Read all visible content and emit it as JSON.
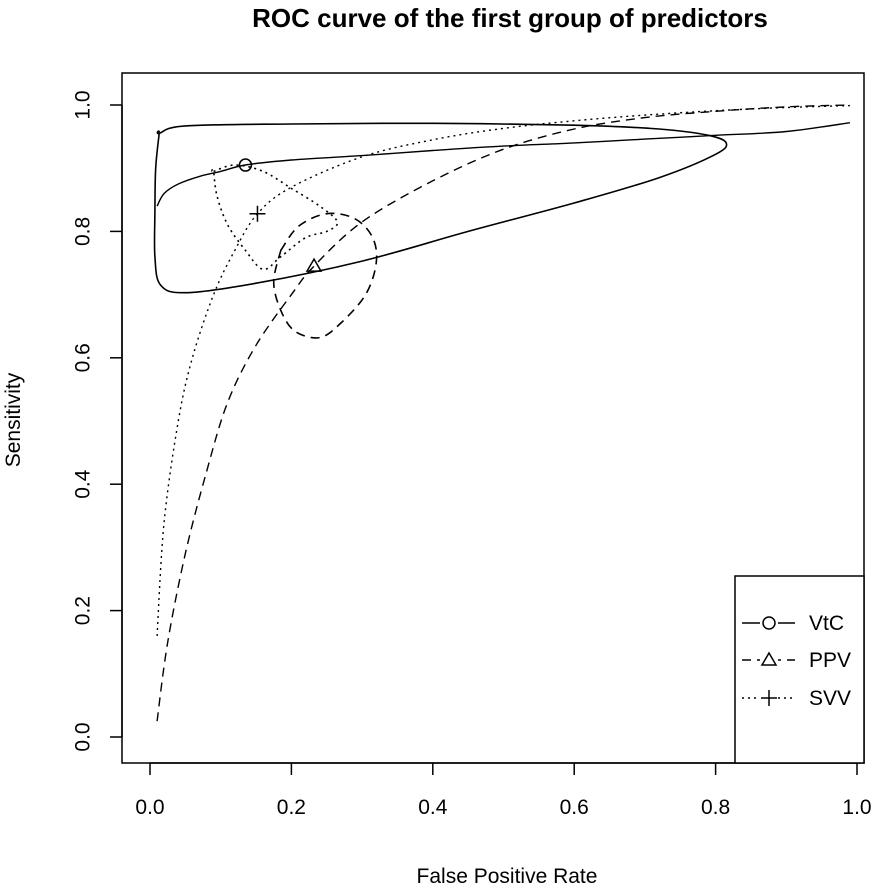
{
  "chart_data": {
    "type": "line",
    "title": "ROC curve of the first group of predictors",
    "xlabel": "False Positive Rate",
    "ylabel": "Sensitivity",
    "xlim": [
      0,
      1
    ],
    "ylim": [
      0,
      1
    ],
    "x_ticks": [
      "0.0",
      "0.2",
      "0.4",
      "0.6",
      "0.8",
      "1.0"
    ],
    "y_ticks": [
      "0.0",
      "0.2",
      "0.4",
      "0.6",
      "0.8",
      "1.0"
    ],
    "grid": false,
    "legend_position": "bottom-right",
    "series": [
      {
        "name": "VtC",
        "line_style": "solid",
        "marker": "circle",
        "color": "#000000",
        "point": [
          0.135,
          0.905
        ],
        "points": [
          [
            0.01,
            0.84
          ],
          [
            0.02,
            0.86
          ],
          [
            0.04,
            0.875
          ],
          [
            0.07,
            0.887
          ],
          [
            0.1,
            0.895
          ],
          [
            0.135,
            0.905
          ],
          [
            0.2,
            0.913
          ],
          [
            0.3,
            0.92
          ],
          [
            0.4,
            0.928
          ],
          [
            0.5,
            0.935
          ],
          [
            0.6,
            0.94
          ],
          [
            0.7,
            0.946
          ],
          [
            0.8,
            0.952
          ],
          [
            0.9,
            0.958
          ],
          [
            0.99,
            0.972
          ]
        ],
        "confidence_region": [
          [
            0.013,
            0.955
          ],
          [
            0.05,
            0.967
          ],
          [
            0.2,
            0.97
          ],
          [
            0.4,
            0.971
          ],
          [
            0.6,
            0.968
          ],
          [
            0.72,
            0.962
          ],
          [
            0.79,
            0.952
          ],
          [
            0.815,
            0.94
          ],
          [
            0.8,
            0.922
          ],
          [
            0.72,
            0.885
          ],
          [
            0.6,
            0.845
          ],
          [
            0.45,
            0.8
          ],
          [
            0.3,
            0.753
          ],
          [
            0.15,
            0.718
          ],
          [
            0.05,
            0.703
          ],
          [
            0.015,
            0.715
          ],
          [
            0.007,
            0.76
          ],
          [
            0.007,
            0.83
          ],
          [
            0.008,
            0.9
          ],
          [
            0.013,
            0.955
          ]
        ]
      },
      {
        "name": "PPV",
        "line_style": "dashed",
        "marker": "triangle",
        "color": "#000000",
        "point": [
          0.232,
          0.745
        ],
        "points": [
          [
            0.01,
            0.025
          ],
          [
            0.025,
            0.15
          ],
          [
            0.05,
            0.29
          ],
          [
            0.08,
            0.42
          ],
          [
            0.11,
            0.53
          ],
          [
            0.15,
            0.62
          ],
          [
            0.2,
            0.7
          ],
          [
            0.232,
            0.745
          ],
          [
            0.3,
            0.815
          ],
          [
            0.4,
            0.88
          ],
          [
            0.5,
            0.93
          ],
          [
            0.6,
            0.962
          ],
          [
            0.7,
            0.98
          ],
          [
            0.8,
            0.99
          ],
          [
            0.9,
            0.997
          ],
          [
            0.99,
            1.0
          ]
        ],
        "confidence_region": [
          [
            0.185,
            0.77
          ],
          [
            0.21,
            0.808
          ],
          [
            0.25,
            0.828
          ],
          [
            0.29,
            0.82
          ],
          [
            0.315,
            0.79
          ],
          [
            0.32,
            0.75
          ],
          [
            0.305,
            0.7
          ],
          [
            0.27,
            0.655
          ],
          [
            0.24,
            0.632
          ],
          [
            0.205,
            0.642
          ],
          [
            0.185,
            0.675
          ],
          [
            0.175,
            0.72
          ],
          [
            0.185,
            0.77
          ]
        ]
      },
      {
        "name": "SVV",
        "line_style": "dotted",
        "marker": "plus",
        "color": "#000000",
        "point": [
          0.152,
          0.828
        ],
        "points": [
          [
            0.01,
            0.16
          ],
          [
            0.02,
            0.34
          ],
          [
            0.04,
            0.5
          ],
          [
            0.06,
            0.6
          ],
          [
            0.09,
            0.7
          ],
          [
            0.12,
            0.77
          ],
          [
            0.152,
            0.828
          ],
          [
            0.2,
            0.87
          ],
          [
            0.3,
            0.918
          ],
          [
            0.4,
            0.945
          ],
          [
            0.5,
            0.963
          ],
          [
            0.6,
            0.975
          ],
          [
            0.7,
            0.984
          ],
          [
            0.8,
            0.991
          ],
          [
            0.9,
            0.996
          ],
          [
            0.99,
            0.999
          ]
        ],
        "confidence_region": [
          [
            0.09,
            0.895
          ],
          [
            0.12,
            0.905
          ],
          [
            0.16,
            0.895
          ],
          [
            0.2,
            0.868
          ],
          [
            0.24,
            0.84
          ],
          [
            0.265,
            0.815
          ],
          [
            0.25,
            0.8
          ],
          [
            0.22,
            0.79
          ],
          [
            0.185,
            0.76
          ],
          [
            0.16,
            0.74
          ],
          [
            0.135,
            0.77
          ],
          [
            0.11,
            0.81
          ],
          [
            0.095,
            0.855
          ],
          [
            0.09,
            0.895
          ]
        ]
      }
    ]
  }
}
